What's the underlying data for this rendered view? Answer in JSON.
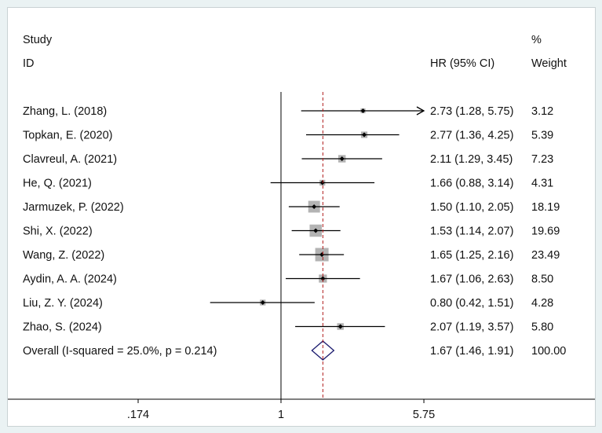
{
  "chart_data": {
    "type": "forest",
    "header": {
      "study_line1": "Study",
      "study_line2": "ID",
      "weight_line1": "%",
      "effect_label": "HR (95% CI)",
      "weight_label": "Weight"
    },
    "studies": [
      {
        "label": "Zhang, L. (2018)",
        "hr": 2.73,
        "lo": 1.28,
        "hi": 5.75,
        "ci_text": "2.73 (1.28, 5.75)",
        "weight": "3.12",
        "arrow_right": true
      },
      {
        "label": "Topkan, E. (2020)",
        "hr": 2.77,
        "lo": 1.36,
        "hi": 4.25,
        "ci_text": "2.77 (1.36, 4.25)",
        "weight": "5.39"
      },
      {
        "label": "Clavreul, A. (2021)",
        "hr": 2.11,
        "lo": 1.29,
        "hi": 3.45,
        "ci_text": "2.11 (1.29, 3.45)",
        "weight": "7.23"
      },
      {
        "label": "He, Q. (2021)",
        "hr": 1.66,
        "lo": 0.88,
        "hi": 3.14,
        "ci_text": "1.66 (0.88, 3.14)",
        "weight": "4.31"
      },
      {
        "label": "Jarmuzek, P. (2022)",
        "hr": 1.5,
        "lo": 1.1,
        "hi": 2.05,
        "ci_text": "1.50 (1.10, 2.05)",
        "weight": "18.19"
      },
      {
        "label": "Shi, X. (2022)",
        "hr": 1.53,
        "lo": 1.14,
        "hi": 2.07,
        "ci_text": "1.53 (1.14, 2.07)",
        "weight": "19.69"
      },
      {
        "label": "Wang, Z. (2022)",
        "hr": 1.65,
        "lo": 1.25,
        "hi": 2.16,
        "ci_text": "1.65 (1.25, 2.16)",
        "weight": "23.49"
      },
      {
        "label": "Aydin, A. A. (2024)",
        "hr": 1.67,
        "lo": 1.06,
        "hi": 2.63,
        "ci_text": "1.67 (1.06, 2.63)",
        "weight": "8.50"
      },
      {
        "label": "Liu, Z. Y. (2024)",
        "hr": 0.8,
        "lo": 0.42,
        "hi": 1.51,
        "ci_text": "0.80 (0.42, 1.51)",
        "weight": "4.28"
      },
      {
        "label": "Zhao, S. (2024)",
        "hr": 2.07,
        "lo": 1.19,
        "hi": 3.57,
        "ci_text": "2.07 (1.19, 3.57)",
        "weight": "5.80"
      }
    ],
    "overall": {
      "label": "Overall  (I-squared = 25.0%, p = 0.214)",
      "hr": 1.67,
      "lo": 1.46,
      "hi": 1.91,
      "ci_text": "1.67 (1.46, 1.91)",
      "weight": "100.00"
    },
    "x_axis": {
      "scale": "log",
      "min": 0.174,
      "max": 5.75,
      "ticks": [
        0.174,
        1,
        5.75
      ],
      "tick_labels": [
        ".174",
        "1",
        "5.75"
      ],
      "null_line": 1
    },
    "colors": {
      "ci_line": "#000000",
      "weight_box": "#b3b3b3",
      "point": "#000000",
      "overall_diamond": "#1a1a6e",
      "overall_line": "#b01c1c",
      "axis": "#000000"
    }
  }
}
